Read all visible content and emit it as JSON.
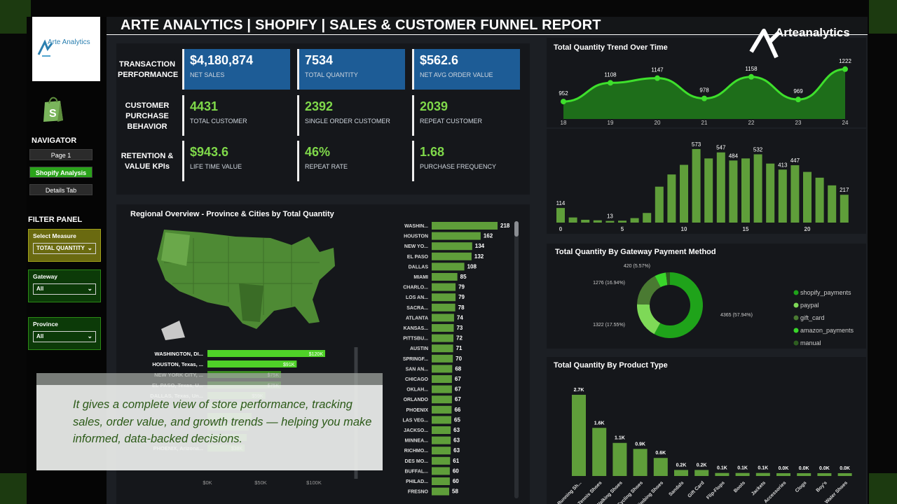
{
  "title": "ARTE ANALYTICS | SHOPIFY | SALES & CUSTOMER FUNNEL REPORT",
  "brand": "Arteanalytics",
  "logo_text": "Arte Analytics",
  "sidebar": {
    "navigator_title": "NAVIGATOR",
    "nav_items": [
      {
        "label": "Page 1",
        "active": false
      },
      {
        "label": "Shopify Analysis",
        "active": true
      },
      {
        "label": "Details Tab",
        "active": false
      }
    ],
    "filter_title": "FILTER PANEL",
    "filters": [
      {
        "label": "Select Measure",
        "value": "TOTAL QUANTITY"
      },
      {
        "label": "Gateway",
        "value": "All"
      },
      {
        "label": "Province",
        "value": "All"
      }
    ]
  },
  "kpis": {
    "row_labels": [
      "TRANSACTION PERFORMANCE",
      "CUSTOMER PURCHASE BEHAVIOR",
      "RETENTION & VALUE KPIs"
    ],
    "rows": [
      [
        {
          "value": "$4,180,874",
          "label": "NET SALES"
        },
        {
          "value": "7534",
          "label": "TOTAL QUANTITY"
        },
        {
          "value": "$562.6",
          "label": "NET AVG ORDER VALUE"
        }
      ],
      [
        {
          "value": "4431",
          "label": "TOTAL CUSTOMER"
        },
        {
          "value": "2392",
          "label": "SINGLE ORDER CUSTOMER"
        },
        {
          "value": "2039",
          "label": "REPEAT CUSTOMER"
        }
      ],
      [
        {
          "value": "$943.6",
          "label": "LIFE TIME VALUE"
        },
        {
          "value": "46%",
          "label": "REPEAT RATE"
        },
        {
          "value": "1.68",
          "label": "PURCHASE FREQUENCY"
        }
      ]
    ]
  },
  "regional": {
    "title": "Regional Overview - Province & Cities by Total Quantity"
  },
  "caption": "It gives a complete view of store performance, tracking sales, order value, and growth trends — helping you make informed, data-backed decisions.",
  "colors": {
    "accent_green": "#7fd84a",
    "kpi_blue": "#1d5c96",
    "bar_green": "#5f9e3a",
    "bright_green": "#39d62a"
  },
  "chart_data": [
    {
      "id": "trend",
      "type": "area",
      "title": "Total Quantity Trend Over Time",
      "x": [
        18,
        19,
        20,
        21,
        22,
        23,
        24
      ],
      "values": [
        952,
        1108,
        1147,
        978,
        1158,
        969,
        1222
      ]
    },
    {
      "id": "hourly",
      "type": "bar",
      "x": [
        0,
        1,
        2,
        3,
        4,
        5,
        6,
        7,
        8,
        9,
        10,
        11,
        12,
        13,
        14,
        15,
        16,
        17,
        18,
        19,
        20,
        21,
        22,
        23
      ],
      "values": [
        114,
        40,
        22,
        18,
        13,
        15,
        35,
        75,
        280,
        375,
        450,
        573,
        500,
        547,
        484,
        500,
        532,
        460,
        413,
        447,
        395,
        350,
        290,
        217
      ],
      "labels": {
        "0": "114",
        "4": "13",
        "11": "573",
        "13": "547",
        "14": "484",
        "16": "532",
        "18": "413",
        "19": "447",
        "23": "217"
      },
      "x_ticks": [
        0,
        5,
        10,
        15,
        20
      ]
    },
    {
      "id": "gateway",
      "type": "pie",
      "title": "Total Quantity By Gateway Payment Method",
      "slices": [
        {
          "name": "shopify_payments",
          "value": 4365,
          "label": "4365 (57.94%)",
          "color": "#1fa31a"
        },
        {
          "name": "paypal",
          "value": 1322,
          "label": "1322 (17.55%)",
          "color": "#7ed957"
        },
        {
          "name": "gift_card",
          "value": 1276,
          "label": "1276 (16.94%)",
          "color": "#4a7a32"
        },
        {
          "name": "amazon_payments",
          "value": 420,
          "label": "420 (5.57%)",
          "color": "#39d62a"
        },
        {
          "name": "manual",
          "value": 151,
          "label": "",
          "color": "#2e5e20"
        }
      ]
    },
    {
      "id": "product",
      "type": "bar",
      "title": "Total Quantity By Product Type",
      "categories": [
        "Running Sh...",
        "Tennis Shoes",
        "Walking Shoes",
        "Cycling Shoes",
        "Climbing Shoes",
        "Sandals",
        "Gift Card",
        "Flip-Flops",
        "Boots",
        "Jackets",
        "Accessories",
        "Clogs",
        "Boy's",
        "Water Shoes"
      ],
      "values": [
        2700,
        1600,
        1100,
        900,
        600,
        200,
        200,
        100,
        100,
        100,
        0,
        0,
        0,
        0
      ],
      "labels": [
        "2.7K",
        "1.6K",
        "1.1K",
        "0.9K",
        "0.6K",
        "0.2K",
        "0.2K",
        "0.1K",
        "0.1K",
        "0.1K",
        "0.0K",
        "0.0K",
        "0.0K",
        "0.0K"
      ]
    },
    {
      "id": "cities",
      "type": "bar",
      "categories": [
        "WASHIN...",
        "HOUSTON",
        "NEW YO...",
        "EL PASO",
        "DALLAS",
        "MIAMI",
        "CHARLO...",
        "LOS AN...",
        "SACRA...",
        "ATLANTA",
        "KANSAS...",
        "PITTSBU...",
        "AUSTIN",
        "SPRINGF...",
        "SAN AN...",
        "CHICAGO",
        "OKLAH...",
        "ORLANDO",
        "PHOENIX",
        "LAS VEG...",
        "JACKSO...",
        "MINNEA...",
        "RICHMO...",
        "DES MO...",
        "BUFFAL...",
        "PHILAD...",
        "FRESNO"
      ],
      "values": [
        218,
        162,
        134,
        132,
        108,
        85,
        79,
        79,
        78,
        74,
        73,
        72,
        71,
        70,
        68,
        67,
        67,
        67,
        66,
        65,
        63,
        63,
        63,
        61,
        60,
        60,
        58
      ]
    },
    {
      "id": "province",
      "type": "bar",
      "categories": [
        "WASHINGTON, DI...",
        "HOUSTON, Texas, ...",
        "NEW YORK CITY, ...",
        "EL PASO, Texas, U...",
        "DALLAS, Texas, Un...",
        "",
        "",
        "",
        "",
        "PHOENIX, Arizona..."
      ],
      "values": [
        120,
        91,
        75,
        75,
        59,
        48,
        45,
        42,
        40,
        38
      ],
      "labels": [
        "$120K",
        "$91K",
        "$75K",
        "$75K",
        "$59K",
        "",
        "",
        "",
        "",
        "$38K"
      ],
      "x_ticks": [
        "$0K",
        "$50K",
        "$100K"
      ]
    }
  ]
}
